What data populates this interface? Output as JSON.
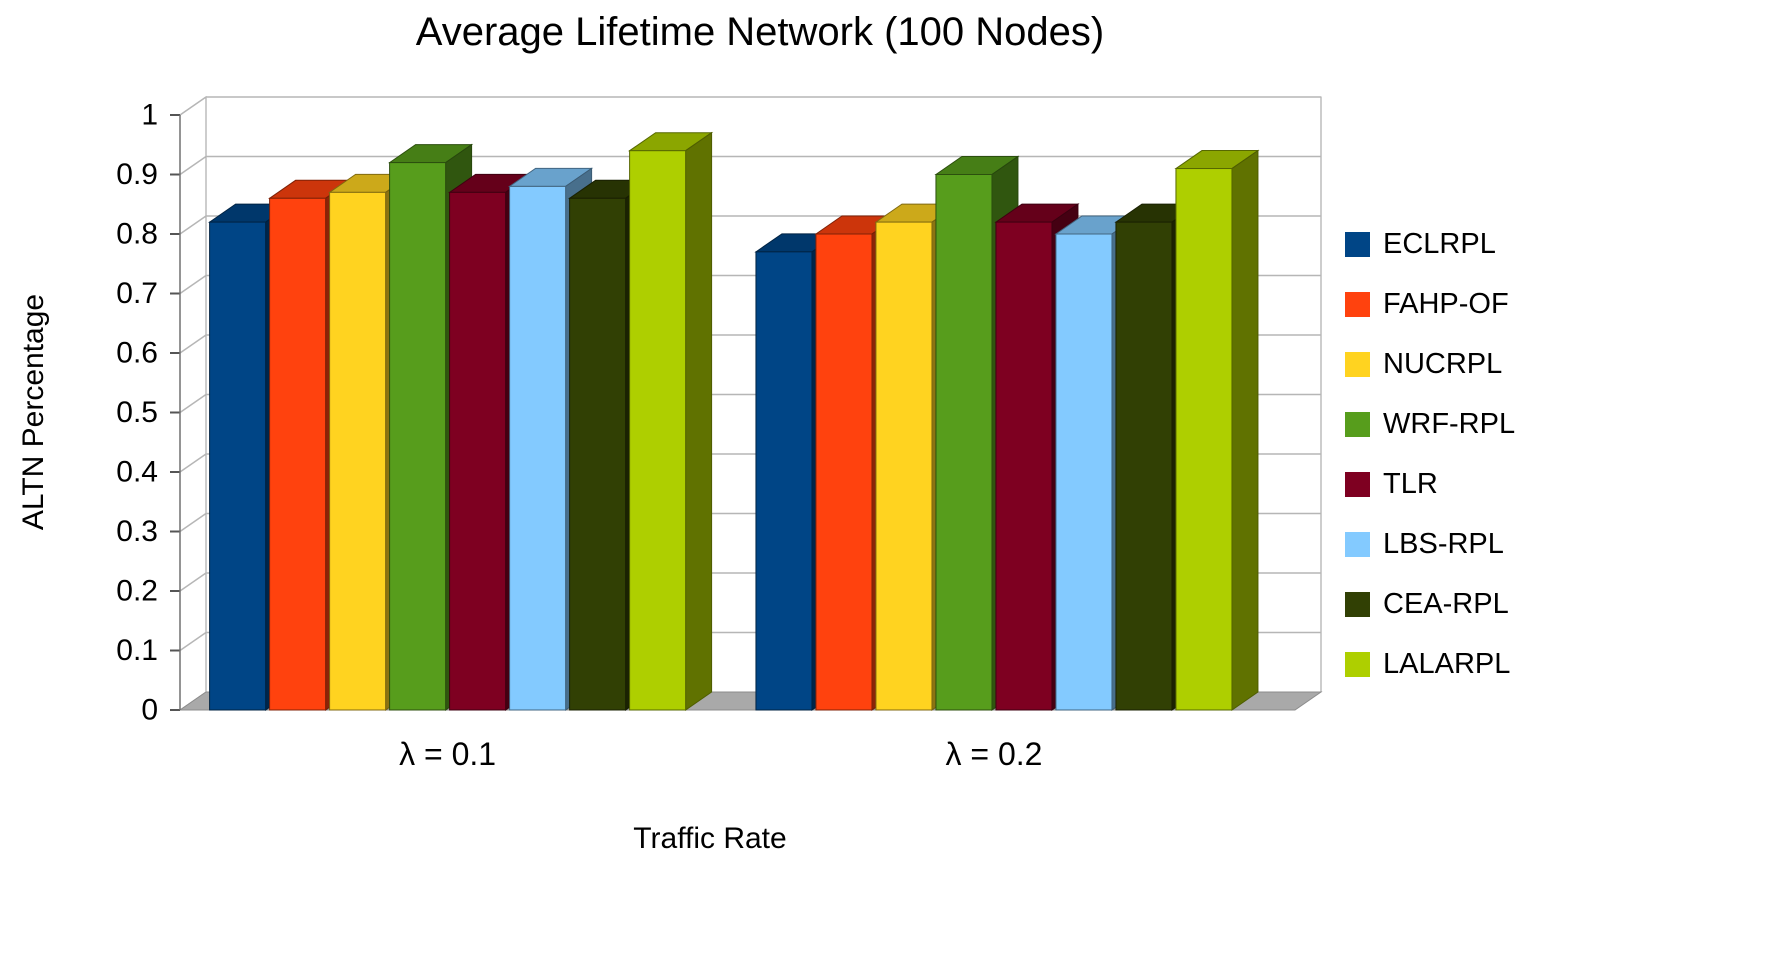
{
  "chart_data": {
    "type": "bar",
    "effect": "3d",
    "title": "Average Lifetime Network (100 Nodes)",
    "xlabel": "Traffic Rate",
    "ylabel": "ALTN Percentage",
    "ylim": [
      0,
      1
    ],
    "ytick_step": 0.1,
    "grid": true,
    "legend_position": "right",
    "wall_color": "#ffffff",
    "floor_color": "#a9a9a9",
    "gridline_color": "#b6b6b6",
    "categories": [
      "λ = 0.1",
      "λ = 0.2"
    ],
    "series": [
      {
        "name": "ECLRPL",
        "color": "#004586",
        "values": [
          0.82,
          0.77
        ]
      },
      {
        "name": "FAHP-OF",
        "color": "#FF420E",
        "values": [
          0.86,
          0.8
        ]
      },
      {
        "name": "NUCRPL",
        "color": "#FFD320",
        "values": [
          0.87,
          0.82
        ]
      },
      {
        "name": "WRF-RPL",
        "color": "#579D1C",
        "values": [
          0.92,
          0.9
        ]
      },
      {
        "name": "TLR",
        "color": "#7E0021",
        "values": [
          0.87,
          0.82
        ]
      },
      {
        "name": "LBS-RPL",
        "color": "#83CAFF",
        "values": [
          0.88,
          0.8
        ]
      },
      {
        "name": "CEA-RPL",
        "color": "#314004",
        "values": [
          0.86,
          0.82
        ]
      },
      {
        "name": "LALARPL",
        "color": "#AECF00",
        "values": [
          0.94,
          0.91
        ]
      }
    ]
  }
}
